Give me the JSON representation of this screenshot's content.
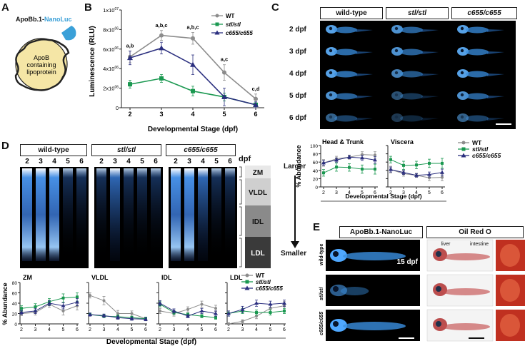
{
  "panel_labels": {
    "A": "A",
    "B": "B",
    "C": "C",
    "D": "D",
    "E": "E"
  },
  "panel_a": {
    "construct_prefix": "ApoBb.1-",
    "construct_suffix": "NanoLuc",
    "particle_line1": "ApoB",
    "particle_line2": "containing",
    "particle_line3": "lipoprotein",
    "colors": {
      "nanoluc": "#3aa0d8",
      "particle": "#f5e6a6"
    }
  },
  "panel_c": {
    "headers": [
      "wild-type",
      "stl/stl",
      "c655/c655"
    ],
    "rows": [
      "2 dpf",
      "3 dpf",
      "4 dpf",
      "5 dpf",
      "6 dpf"
    ]
  },
  "panel_d": {
    "headers": [
      "wild-type",
      "stl/stl",
      "c655/c655"
    ],
    "lane_labels": [
      "2",
      "3",
      "4",
      "5",
      "6"
    ],
    "dpf_label": "dpf",
    "classes": [
      "ZM",
      "VLDL",
      "IDL",
      "LDL"
    ],
    "larger": "Larger",
    "smaller": "Smaller"
  },
  "panel_e": {
    "header_left": "ApoBb.1-NanoLuc",
    "header_right": "Oil Red O",
    "rows": [
      "wild-type",
      "stl/stl",
      "c655/c655"
    ],
    "stage": "15 dpf",
    "liver": "liver",
    "intestine": "intestine"
  },
  "legend": [
    {
      "name": "WT",
      "color": "#8c8c8c",
      "marker": "circle"
    },
    {
      "name": "stl/stl",
      "color": "#1a9850",
      "marker": "square"
    },
    {
      "name": "c655/c655",
      "color": "#2b2f7f",
      "marker": "triangle"
    }
  ],
  "chart_data": [
    {
      "id": "B",
      "type": "line",
      "ylabel": "Luminescence (RLU)",
      "xlabel": "Developmental Stage (dpf)",
      "x": [
        2,
        3,
        4,
        5,
        6
      ],
      "ylim": [
        0,
        10000000
      ],
      "yticks": [
        "0",
        "2x10^06",
        "4x10^06",
        "6x10^06",
        "8x10^06",
        "1x10^07"
      ],
      "ytick_values": [
        0,
        2000000,
        4000000,
        6000000,
        8000000,
        10000000
      ],
      "series": [
        {
          "name": "WT",
          "values": [
            5200000,
            7400000,
            7100000,
            3600000,
            900000
          ],
          "err": [
            600000,
            500000,
            600000,
            800000,
            500000
          ]
        },
        {
          "name": "stl/stl",
          "values": [
            2400000,
            3000000,
            1700000,
            1100000,
            300000
          ],
          "err": [
            400000,
            400000,
            500000,
            400000,
            200000
          ]
        },
        {
          "name": "c655/c655",
          "values": [
            5100000,
            6100000,
            4400000,
            1100000,
            300000
          ],
          "err": [
            700000,
            600000,
            1000000,
            900000,
            300000
          ]
        }
      ],
      "annotations": [
        "a,b",
        "a,b,c",
        "a,b,c",
        "a,c",
        "c,d"
      ]
    },
    {
      "id": "C-head",
      "type": "line",
      "title": "Head & Trunk",
      "ylabel": "% Abundance",
      "x": [
        2,
        3,
        4,
        5,
        6
      ],
      "ylim": [
        0,
        100
      ],
      "yticks": [
        0,
        20,
        40,
        60,
        80,
        100
      ],
      "series": [
        {
          "name": "WT",
          "values": [
            58,
            68,
            72,
            78,
            77
          ],
          "err": [
            8,
            6,
            5,
            7,
            8
          ]
        },
        {
          "name": "stl/stl",
          "values": [
            34,
            48,
            47,
            43,
            43
          ],
          "err": [
            8,
            10,
            9,
            10,
            12
          ]
        },
        {
          "name": "c655/c655",
          "values": [
            58,
            65,
            72,
            70,
            65
          ],
          "err": [
            6,
            5,
            4,
            6,
            8
          ]
        }
      ]
    },
    {
      "id": "C-viscera",
      "type": "line",
      "title": "Viscera",
      "x": [
        2,
        3,
        4,
        5,
        6
      ],
      "ylim": [
        0,
        100
      ],
      "yticks": [
        0,
        20,
        40,
        60,
        80,
        100
      ],
      "series": [
        {
          "name": "WT",
          "values": [
            42,
            32,
            28,
            22,
            23
          ],
          "err": [
            8,
            6,
            5,
            7,
            8
          ]
        },
        {
          "name": "stl/stl",
          "values": [
            66,
            52,
            53,
            57,
            57
          ],
          "err": [
            8,
            10,
            9,
            10,
            12
          ]
        },
        {
          "name": "c655/c655",
          "values": [
            42,
            35,
            28,
            30,
            35
          ],
          "err": [
            6,
            5,
            4,
            6,
            8
          ]
        }
      ]
    },
    {
      "id": "D-ZM",
      "type": "line",
      "title": "ZM",
      "ylabel": "% Abundance",
      "x": [
        2,
        3,
        4,
        5,
        6
      ],
      "ylim": [
        0,
        80
      ],
      "yticks": [
        0,
        20,
        40,
        60,
        80
      ],
      "series": [
        {
          "name": "WT",
          "values": [
            20,
            22,
            38,
            25,
            35
          ],
          "err": [
            4,
            5,
            6,
            8,
            8
          ]
        },
        {
          "name": "stl/stl",
          "values": [
            30,
            33,
            43,
            50,
            52
          ],
          "err": [
            5,
            6,
            6,
            8,
            8
          ]
        },
        {
          "name": "c655/c655",
          "values": [
            22,
            25,
            40,
            35,
            42
          ],
          "err": [
            4,
            5,
            5,
            6,
            7
          ]
        }
      ]
    },
    {
      "id": "D-VLDL",
      "type": "line",
      "title": "VLDL",
      "x": [
        2,
        3,
        4,
        5,
        6
      ],
      "ylim": [
        0,
        80
      ],
      "yticks": [
        0,
        20,
        40,
        60,
        80
      ],
      "series": [
        {
          "name": "WT",
          "values": [
            55,
            45,
            20,
            20,
            10
          ],
          "err": [
            5,
            8,
            6,
            5,
            3
          ]
        },
        {
          "name": "stl/stl",
          "values": [
            18,
            15,
            14,
            12,
            10
          ],
          "err": [
            3,
            3,
            3,
            3,
            3
          ]
        },
        {
          "name": "c655/c655",
          "values": [
            18,
            16,
            12,
            10,
            9
          ],
          "err": [
            3,
            3,
            3,
            3,
            3
          ]
        }
      ]
    },
    {
      "id": "D-IDL",
      "type": "line",
      "title": "IDL",
      "x": [
        2,
        3,
        4,
        5,
        6
      ],
      "ylim": [
        0,
        80
      ],
      "yticks": [
        0,
        20,
        40,
        60,
        80
      ],
      "series": [
        {
          "name": "WT",
          "values": [
            25,
            20,
            28,
            38,
            30
          ],
          "err": [
            5,
            5,
            5,
            6,
            6
          ]
        },
        {
          "name": "stl/stl",
          "values": [
            38,
            22,
            18,
            15,
            12
          ],
          "err": [
            5,
            4,
            3,
            3,
            3
          ]
        },
        {
          "name": "c655/c655",
          "values": [
            40,
            25,
            15,
            25,
            20
          ],
          "err": [
            5,
            4,
            3,
            5,
            5
          ]
        }
      ]
    },
    {
      "id": "D-LDL",
      "type": "line",
      "title": "LDL",
      "x": [
        2,
        3,
        4,
        5,
        6
      ],
      "ylim": [
        0,
        80
      ],
      "yticks": [
        0,
        20,
        40,
        60,
        80
      ],
      "series": [
        {
          "name": "WT",
          "values": [
            0,
            5,
            15,
            30,
            35
          ],
          "err": [
            2,
            3,
            5,
            8,
            8
          ]
        },
        {
          "name": "stl/stl",
          "values": [
            20,
            25,
            22,
            22,
            25
          ],
          "err": [
            5,
            5,
            5,
            5,
            5
          ]
        },
        {
          "name": "c655/c655",
          "values": [
            20,
            28,
            40,
            38,
            40
          ],
          "err": [
            5,
            6,
            6,
            6,
            6
          ]
        }
      ]
    }
  ],
  "shared_xlabel": "Developmental Stage (dpf)"
}
